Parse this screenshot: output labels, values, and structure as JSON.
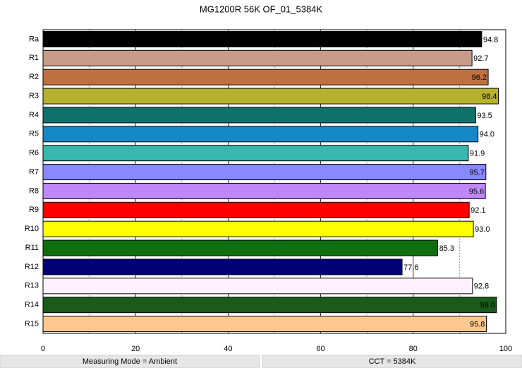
{
  "chart_data": {
    "type": "barh",
    "title": "MG1200R 56K OF_01_5384K",
    "categories": [
      "Ra",
      "R1",
      "R2",
      "R3",
      "R4",
      "R5",
      "R6",
      "R7",
      "R8",
      "R9",
      "R10",
      "R11",
      "R12",
      "R13",
      "R14",
      "R15"
    ],
    "values": [
      94.8,
      92.7,
      96.2,
      98.4,
      93.5,
      94.0,
      91.9,
      95.7,
      95.6,
      92.1,
      93.0,
      85.3,
      77.6,
      92.8,
      98.0,
      95.8
    ],
    "value_labels": [
      "94.8",
      "92.7",
      "96.2",
      "98.4",
      "93.5",
      "94.0",
      "91.9",
      "95.7",
      "95.6",
      "92.1",
      "93.0",
      "85.3",
      "77.6",
      "92.8",
      "98.0",
      "95.8"
    ],
    "colors": [
      "#000000",
      "#c89a88",
      "#c0703f",
      "#b5b02e",
      "#0f716b",
      "#1589c8",
      "#36b8ac",
      "#8888ff",
      "#bf88f8",
      "#ff0000",
      "#ffff00",
      "#0f6e0f",
      "#000077",
      "#fff0ff",
      "#1a5a1a",
      "#ffc890"
    ],
    "xlim": [
      0,
      100
    ],
    "xticks": [
      0,
      20,
      40,
      60,
      80,
      100
    ],
    "xminor_grid": [
      10,
      30,
      50,
      70,
      90
    ],
    "grid": true,
    "footer": [
      "Measuring Mode = Ambient",
      "CCT = 5384K"
    ]
  }
}
